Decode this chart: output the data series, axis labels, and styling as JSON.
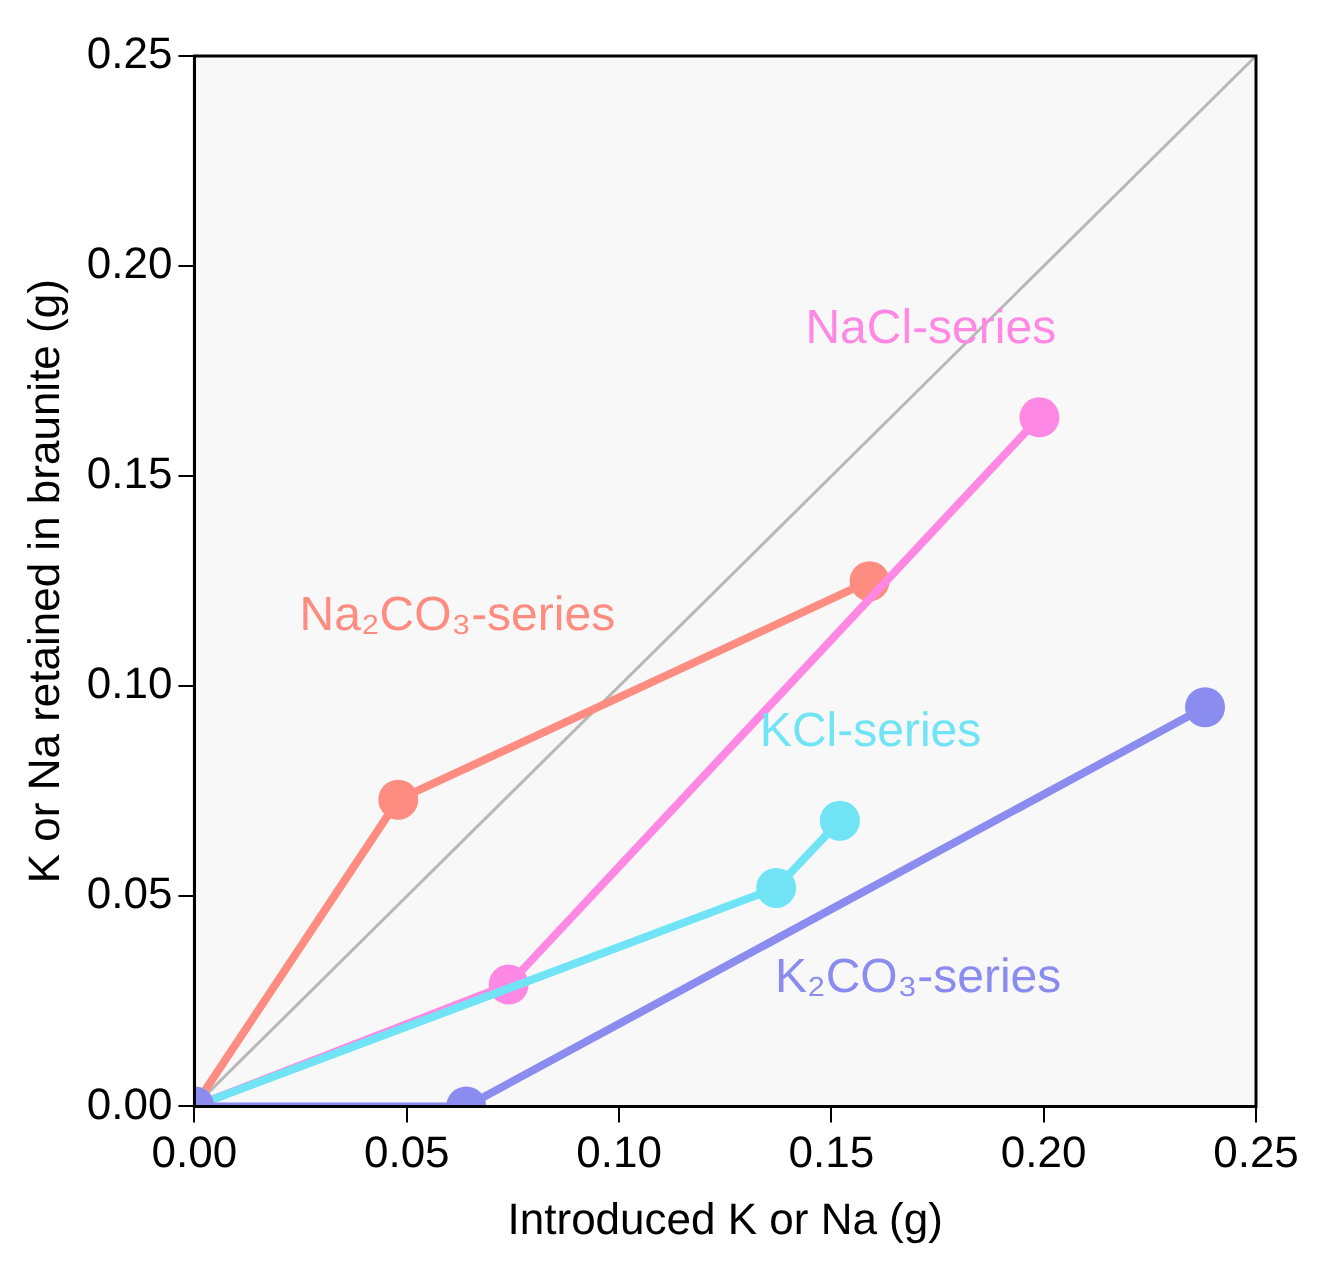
{
  "chart_data": {
    "type": "line",
    "xlabel": "Introduced K or Na (g)",
    "ylabel": "K or Na retained in braunite (g)",
    "xlim": [
      0,
      0.25
    ],
    "xticks": [
      {
        "value": 0,
        "label": "0.00"
      },
      {
        "value": 0.05,
        "label": "0.05"
      },
      {
        "value": 0.1,
        "label": "0.10"
      },
      {
        "value": 0.15,
        "label": "0.15"
      },
      {
        "value": 0.2,
        "label": "0.20"
      },
      {
        "value": 0.25,
        "label": "0.25"
      }
    ],
    "ylim": [
      0,
      0.25
    ],
    "yticks": [
      {
        "value": 0,
        "label": "0.00"
      },
      {
        "value": 0.05,
        "label": "0.05"
      },
      {
        "value": 0.1,
        "label": "0.10"
      },
      {
        "value": 0.15,
        "label": "0.15"
      },
      {
        "value": 0.2,
        "label": "0.20"
      },
      {
        "value": 0.25,
        "label": "0.25"
      }
    ],
    "grid": false,
    "legend": false,
    "marker": "circle",
    "series": [
      {
        "color": "#b8b8b8",
        "marker": "none",
        "x": [
          0,
          0.25
        ],
        "values": [
          0,
          0.25
        ]
      },
      {
        "name": "Na₂CO₃-series",
        "color": "#ff8c80",
        "x": [
          0,
          0.048,
          0.159
        ],
        "values": [
          0,
          0.073,
          0.125
        ]
      },
      {
        "name": "NaCl-series",
        "color": "#ff88e4",
        "x": [
          0,
          0.074,
          0.199
        ],
        "values": [
          0,
          0.029,
          0.164
        ]
      },
      {
        "name": "KCl-series",
        "color": "#70e4f5",
        "x": [
          0,
          0.137,
          0.152
        ],
        "values": [
          0,
          0.052,
          0.068
        ]
      },
      {
        "name": "K₂CO₃-series",
        "color": "#8a8cf0",
        "x": [
          0,
          0.064,
          0.238
        ],
        "values": [
          0,
          0,
          0.095
        ]
      }
    ]
  }
}
